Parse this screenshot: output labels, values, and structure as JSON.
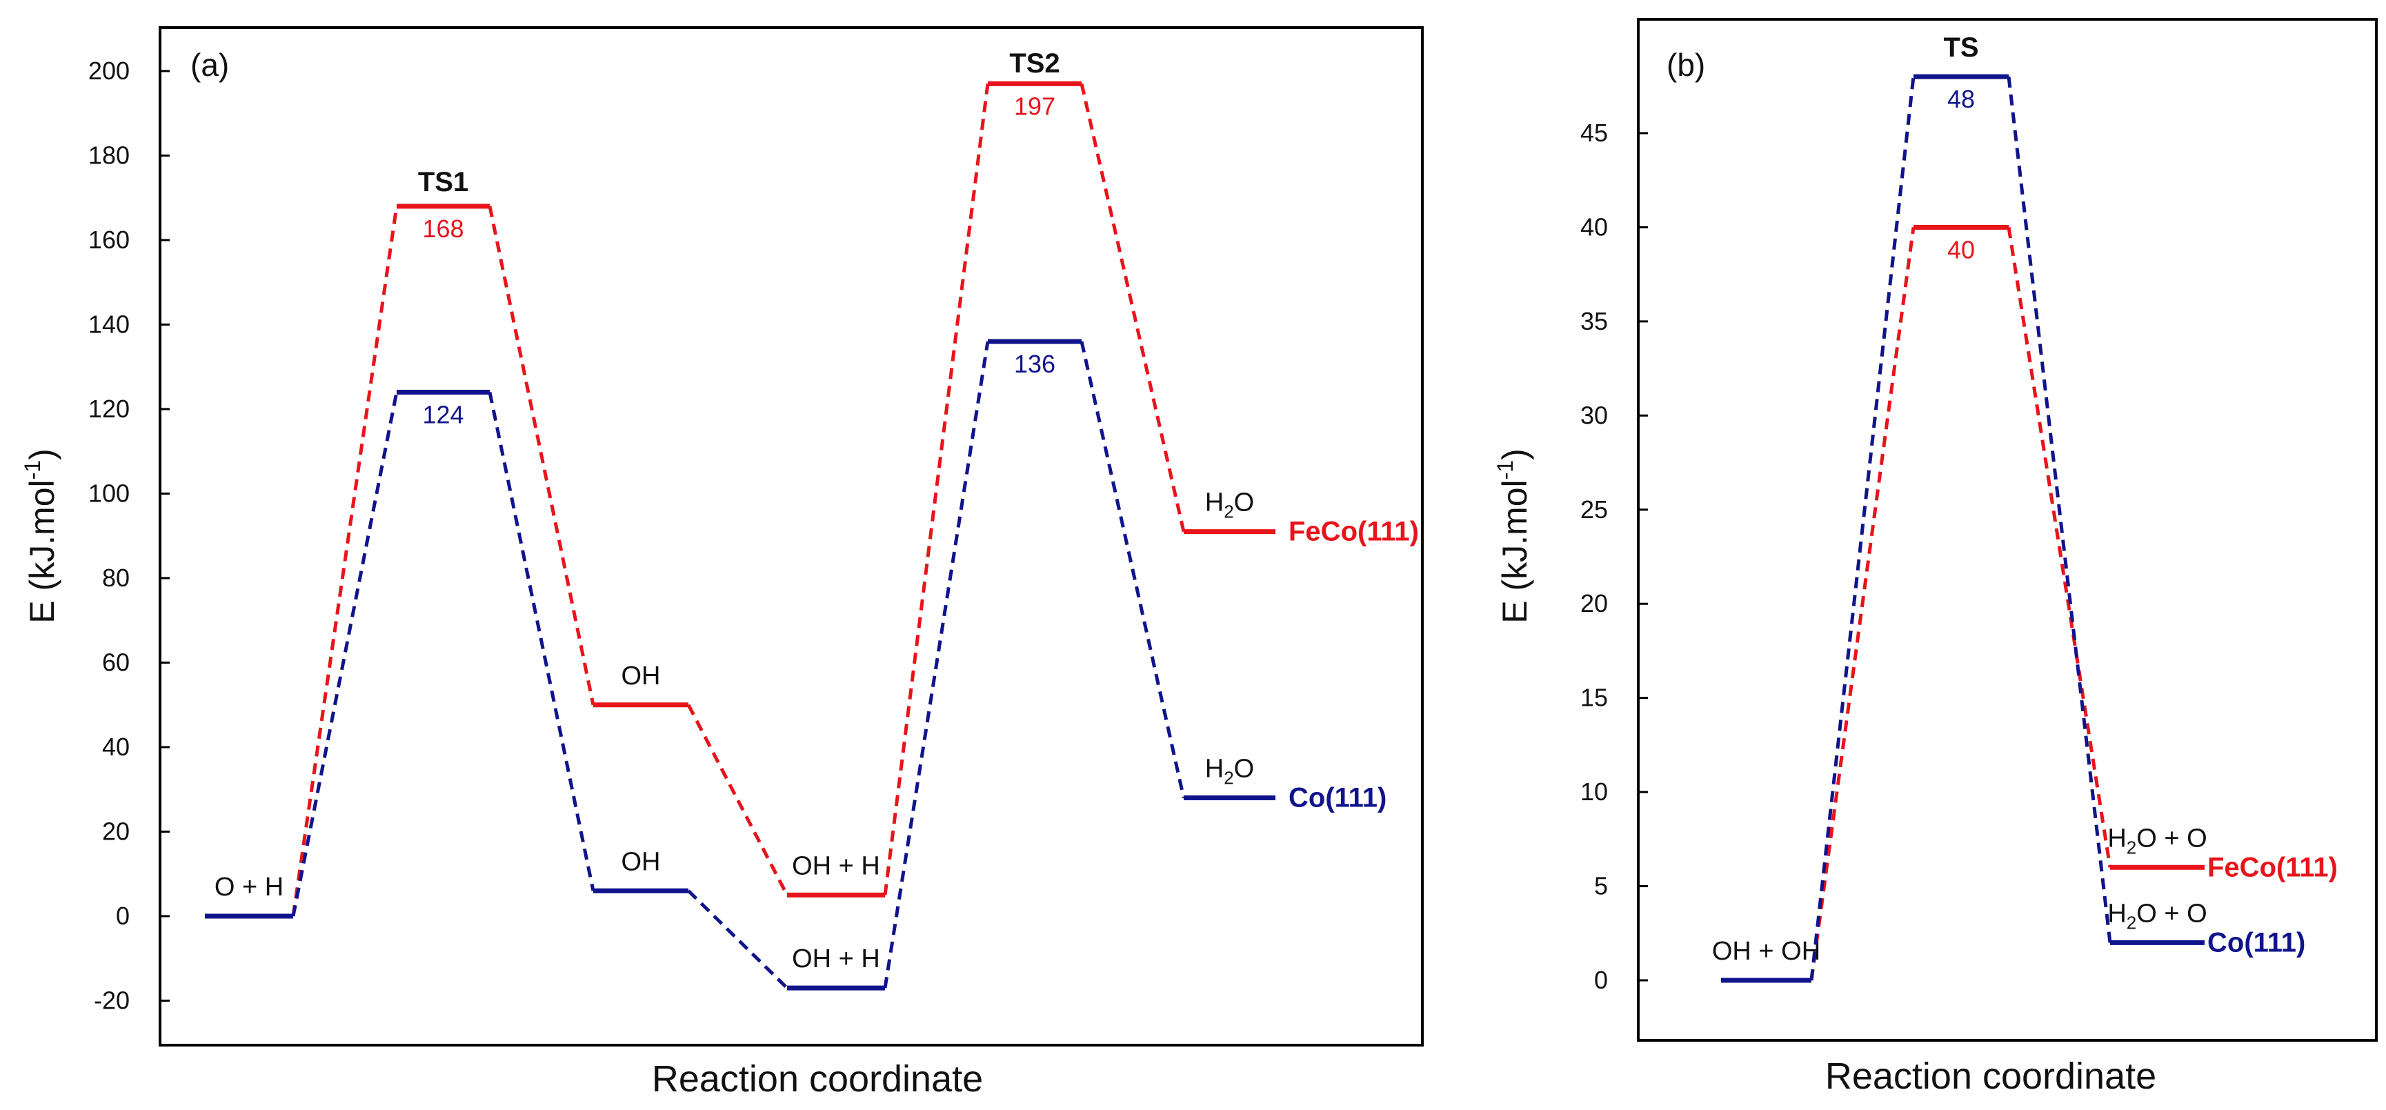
{
  "colors": {
    "feco": "#e8141b",
    "co": "#10148c",
    "text": "#111111",
    "frame": "#000000"
  },
  "chart_data": [
    {
      "panel": "(a)",
      "type": "line",
      "subtype": "energy-profile",
      "title": "",
      "xlabel": "Reaction coordinate",
      "ylabel": "E (kJ.mol",
      "ylabel_sup": "-1",
      "ylabel_close": ")",
      "ylim": [
        -30,
        212
      ],
      "yticks": [
        200,
        180,
        160,
        140,
        120,
        100,
        80,
        60,
        40,
        20,
        0,
        -20
      ],
      "ytick_labels": [
        "200",
        "180",
        "160",
        "140",
        "120",
        "100",
        "80",
        "60",
        "40",
        "20",
        "0",
        "-20"
      ],
      "grid": false,
      "steps": [
        "O + H",
        "TS1",
        "OH",
        "OH + H",
        "TS2",
        "H2O"
      ],
      "series": [
        {
          "name": "FeCo(111)",
          "color": "#e8141b",
          "values": [
            0,
            168,
            50,
            5,
            197,
            91
          ],
          "value_labels": [
            "",
            "168",
            "",
            "",
            "197",
            ""
          ],
          "state_labels": [
            "O + H",
            "",
            "OH",
            "OH + H",
            "",
            "H2O"
          ],
          "legend_label": "FeCo(111)"
        },
        {
          "name": "Co(111)",
          "color": "#10148c",
          "values": [
            0,
            124,
            6,
            -17,
            136,
            28
          ],
          "value_labels": [
            "",
            "124",
            "",
            "",
            "136",
            ""
          ],
          "state_labels": [
            "",
            "",
            "OH",
            "OH + H",
            "",
            "H2O"
          ],
          "legend_label": "Co(111)"
        }
      ],
      "annotations": [
        "TS1",
        "TS2"
      ]
    },
    {
      "panel": "(b)",
      "type": "line",
      "subtype": "energy-profile",
      "title": "",
      "xlabel": "Reaction coordinate",
      "ylabel": "E (kJ.mol",
      "ylabel_sup": "-1",
      "ylabel_close": ")",
      "ylim": [
        -3,
        50
      ],
      "yticks": [
        45,
        40,
        35,
        30,
        25,
        20,
        15,
        10,
        5,
        0
      ],
      "ytick_labels": [
        "45",
        "40",
        "35",
        "30",
        "25",
        "20",
        "15",
        "10",
        "5",
        "0"
      ],
      "grid": false,
      "steps": [
        "OH + OH",
        "TS",
        "H2O + O"
      ],
      "series": [
        {
          "name": "FeCo(111)",
          "color": "#e8141b",
          "values": [
            0,
            40,
            6
          ],
          "value_labels": [
            "",
            "40",
            ""
          ],
          "state_labels": [
            "OH + OH",
            "",
            "H2O + O"
          ],
          "legend_label": "FeCo(111)"
        },
        {
          "name": "Co(111)",
          "color": "#10148c",
          "values": [
            0,
            48,
            2
          ],
          "value_labels": [
            "",
            "48",
            ""
          ],
          "state_labels": [
            "",
            "",
            "H2O + O"
          ],
          "legend_label": "Co(111)"
        }
      ],
      "annotations": [
        "TS"
      ]
    }
  ]
}
